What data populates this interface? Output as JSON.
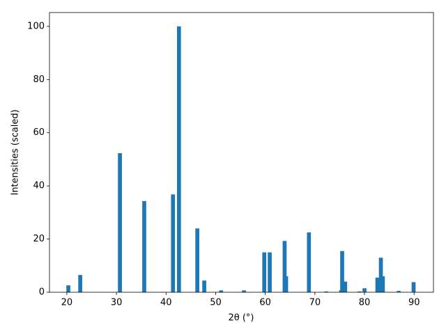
{
  "chart_data": {
    "type": "bar",
    "x": [
      20.3,
      22.7,
      30.7,
      35.6,
      41.4,
      42.6,
      46.3,
      47.7,
      51.1,
      55.7,
      59.8,
      60.9,
      63.9,
      64.2,
      68.8,
      72.3,
      75.3,
      75.5,
      76.1,
      79.0,
      80.0,
      82.6,
      83.3,
      83.7,
      86.9,
      89.9
    ],
    "values": [
      2.6,
      6.5,
      52.3,
      34.3,
      36.8,
      100,
      24,
      4.4,
      0.7,
      0.7,
      15,
      15,
      19.3,
      6,
      22.5,
      0.3,
      0.8,
      15.5,
      4,
      0.3,
      1.5,
      5.5,
      13,
      6,
      0.5,
      3.8
    ],
    "color": "#1f77b4",
    "xlabel": "2θ (°)",
    "ylabel": "Intensities (scaled)",
    "xlim": [
      16.5,
      93.9
    ],
    "ylim": [
      0,
      105.2
    ],
    "xticks": [
      20,
      30,
      40,
      50,
      60,
      70,
      80,
      90
    ],
    "yticks": [
      0,
      20,
      40,
      60,
      80,
      100
    ]
  }
}
